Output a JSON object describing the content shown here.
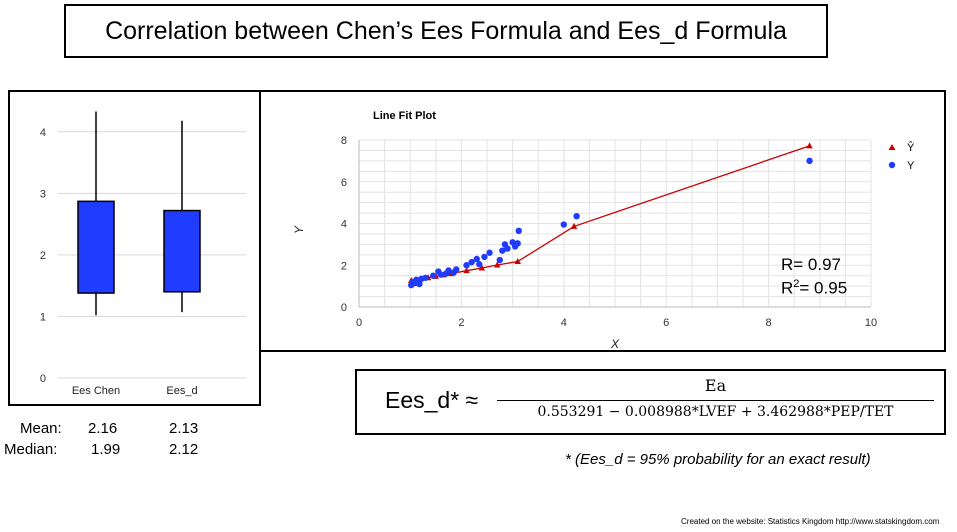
{
  "title": "Correlation between Chen’s Ees Formula and Ees_d  Formula",
  "chart_data": [
    {
      "type": "box",
      "categories": [
        "Ees Chen",
        "Ees_d"
      ],
      "y_ticks": [
        0,
        1,
        2,
        3,
        4
      ],
      "ylim": [
        0,
        4.5
      ],
      "color": "#1f3cff",
      "boxes": [
        {
          "name": "Ees Chen",
          "min": 1.02,
          "q1": 1.38,
          "q3": 2.87,
          "max": 4.33
        },
        {
          "name": "Ees_d",
          "min": 1.07,
          "q1": 1.4,
          "q3": 2.72,
          "max": 4.18
        }
      ]
    },
    {
      "type": "scatter",
      "title": "Line Fit Plot",
      "xlabel": "X",
      "ylabel": "Y",
      "xlim": [
        0,
        10
      ],
      "ylim": [
        0,
        8
      ],
      "x_ticks": [
        0,
        2,
        4,
        6,
        8,
        10
      ],
      "y_ticks": [
        0,
        2,
        4,
        6,
        8
      ],
      "legend": [
        "Ŷ",
        "Y"
      ],
      "legend_position": "top-right",
      "grid": true,
      "fit_color": "#cc0000",
      "point_color": "#1f3cff",
      "fitted": {
        "x": [
          1.02,
          1.1,
          1.2,
          1.35,
          1.5,
          1.65,
          1.8,
          2.1,
          2.4,
          2.7,
          3.1,
          4.2,
          8.8
        ],
        "y": [
          1.27,
          1.3,
          1.34,
          1.4,
          1.47,
          1.54,
          1.6,
          1.74,
          1.87,
          2.01,
          2.18,
          3.86,
          7.72
        ]
      },
      "actual": {
        "x": [
          1.02,
          1.05,
          1.1,
          1.12,
          1.18,
          1.22,
          1.3,
          1.45,
          1.55,
          1.6,
          1.7,
          1.75,
          1.85,
          1.9,
          2.1,
          2.2,
          2.3,
          2.35,
          2.45,
          2.55,
          2.75,
          2.8,
          2.85,
          2.9,
          3.0,
          3.05,
          3.1,
          3.12,
          4.0,
          4.25,
          8.8
        ],
        "y": [
          1.05,
          1.2,
          1.15,
          1.3,
          1.1,
          1.35,
          1.4,
          1.5,
          1.7,
          1.55,
          1.6,
          1.75,
          1.65,
          1.8,
          2.0,
          2.15,
          2.3,
          2.05,
          2.4,
          2.6,
          2.25,
          2.7,
          3.0,
          2.8,
          3.1,
          2.9,
          3.05,
          3.65,
          3.95,
          4.35,
          7.0
        ]
      },
      "r": "R=  0.97",
      "r2_prefix": "R",
      "r2_sup": "2",
      "r2_suffix": "= 0.95"
    }
  ],
  "stats": {
    "mean_label": "Mean:",
    "mean_chen": "2.16",
    "mean_d": "2.13",
    "median_label": "Median:",
    "median_chen": "1.99",
    "median_d": "2.12"
  },
  "formula": {
    "lhs": "Ees_d* ≈",
    "numerator": "Ea",
    "denominator": "0.553291 − 0.008988*LVEF + 3.462988*PEP/TET"
  },
  "footnote": "* (Ees_d = 95% probability for an exact result)",
  "credit": "Created on the website: Statistics Kingdom http://www.statskingdom.com"
}
